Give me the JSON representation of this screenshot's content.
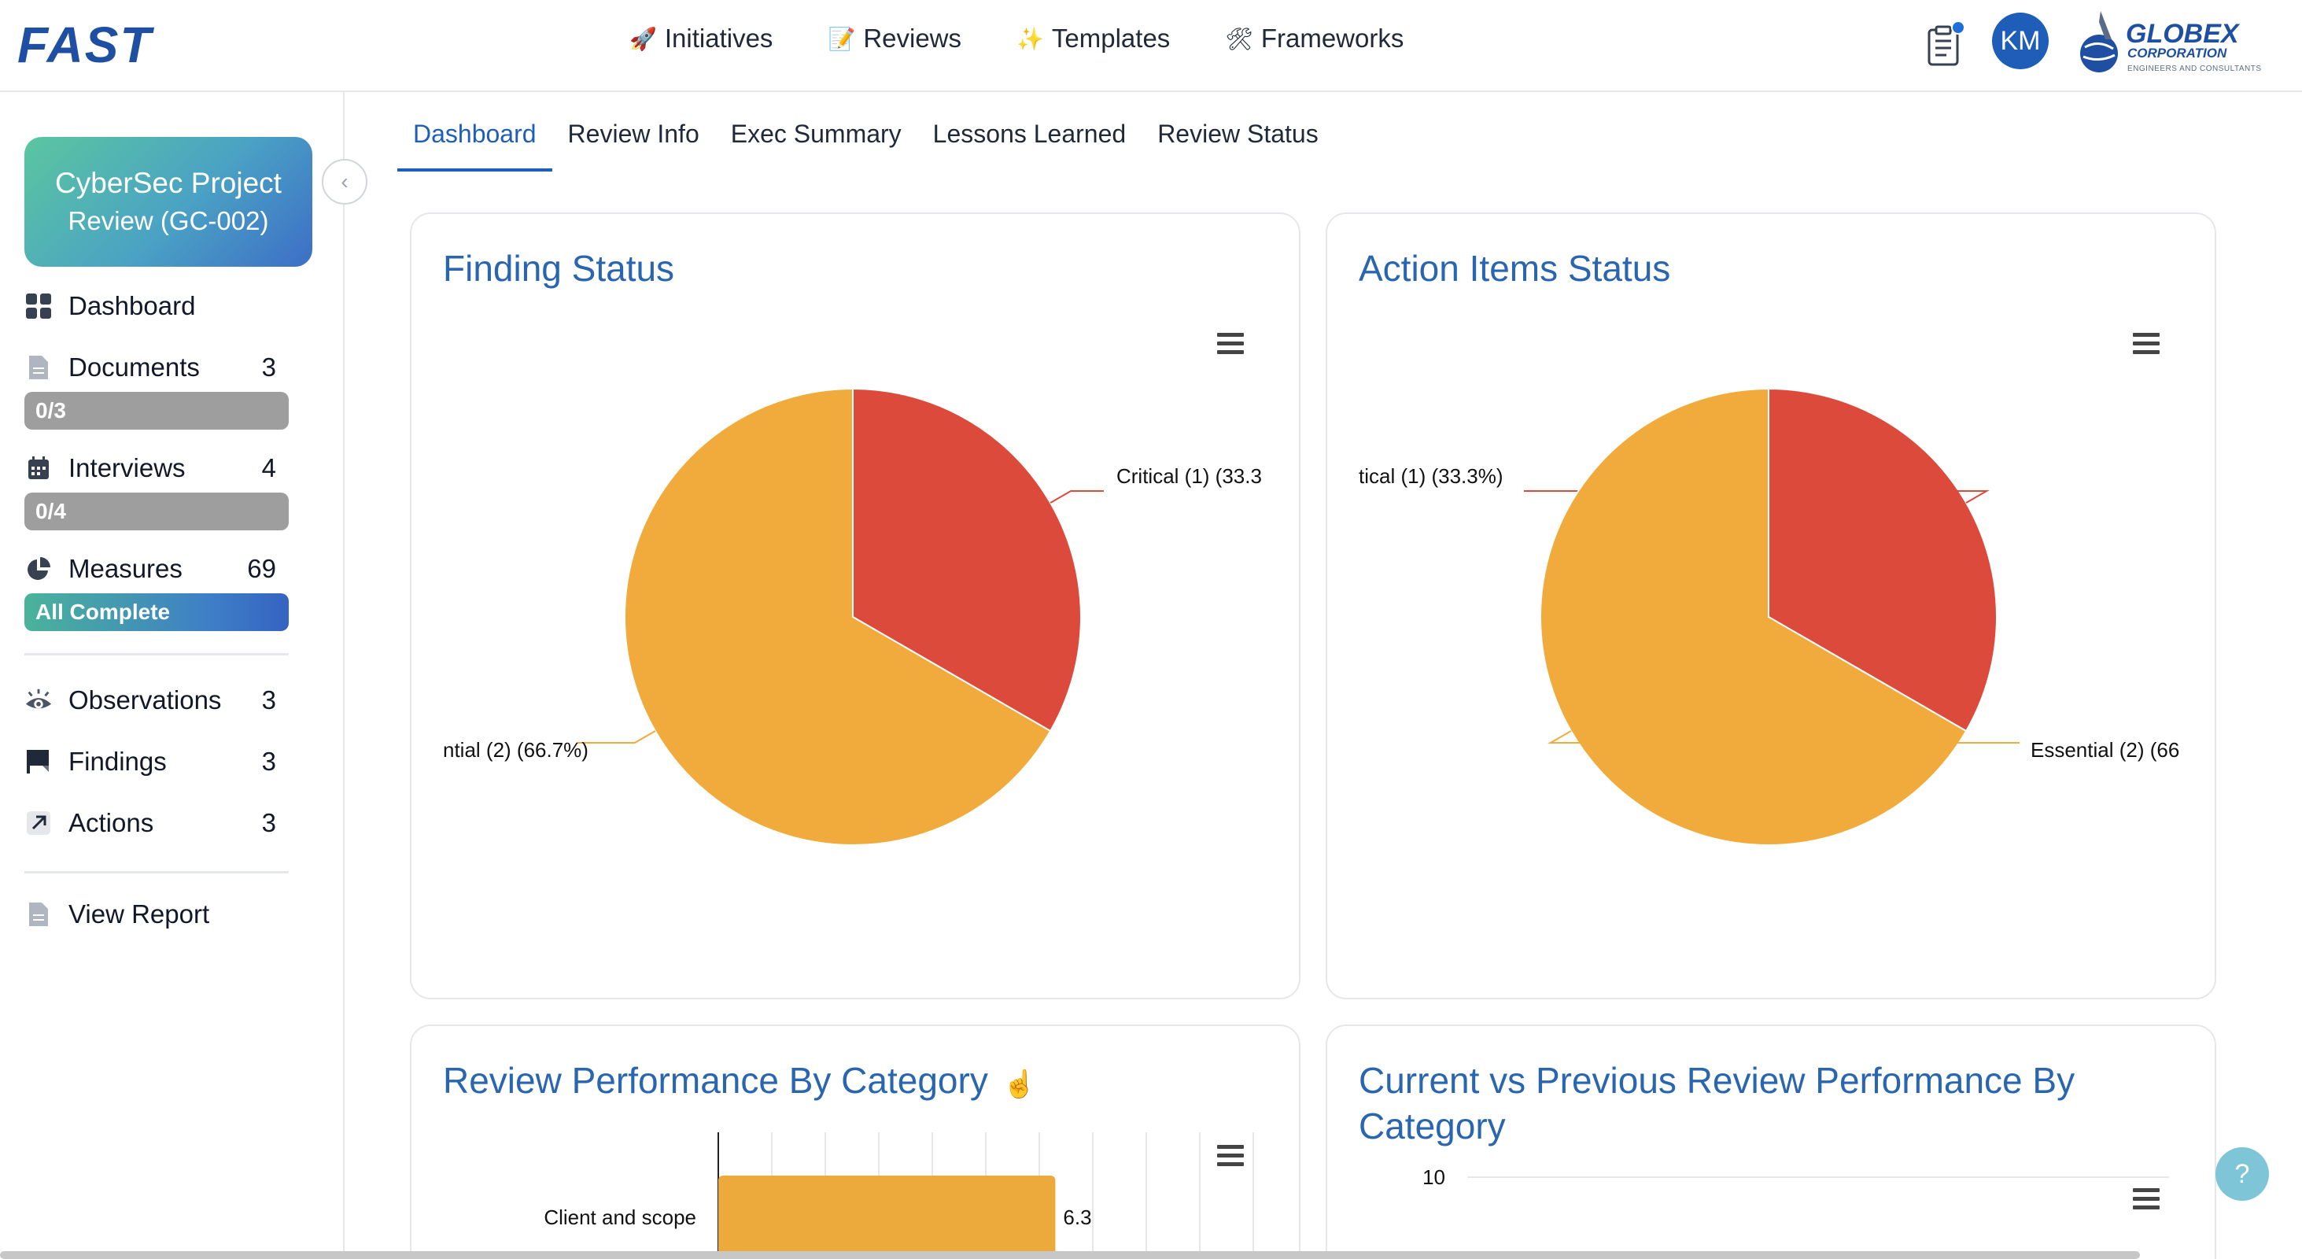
{
  "header": {
    "brand": "FAST",
    "nav": [
      {
        "emoji": "🚀",
        "label": "Initiatives"
      },
      {
        "emoji": "📝",
        "label": "Reviews"
      },
      {
        "emoji": "✨",
        "label": "Templates"
      },
      {
        "emoji": "🛠",
        "label": "Frameworks"
      }
    ],
    "avatar": "KM",
    "corp_name": "GLOBEX",
    "corp_sub": "CORPORATION",
    "corp_tagline": "ENGINEERS AND CONSULTANTS"
  },
  "sidebar": {
    "project_line1": "CyberSec Project",
    "project_line2": "Review (GC-002)",
    "items": [
      {
        "label": "Dashboard",
        "count": "",
        "icon": "grid-icon"
      },
      {
        "label": "Documents",
        "count": "3",
        "icon": "document-icon"
      },
      {
        "label": "Interviews",
        "count": "4",
        "icon": "calendar-icon"
      },
      {
        "label": "Measures",
        "count": "69",
        "icon": "pie-icon"
      },
      {
        "label": "Observations",
        "count": "3",
        "icon": "eye-icon"
      },
      {
        "label": "Findings",
        "count": "3",
        "icon": "flag-icon"
      },
      {
        "label": "Actions",
        "count": "3",
        "icon": "arrow-icon"
      },
      {
        "label": "View Report",
        "count": "",
        "icon": "report-icon"
      }
    ],
    "pills": {
      "documents": "0/3",
      "interviews": "0/4",
      "measures": "All Complete"
    }
  },
  "tabs": [
    "Dashboard",
    "Review Info",
    "Exec Summary",
    "Lessons Learned",
    "Review Status"
  ],
  "cards": {
    "finding_status": "Finding Status",
    "action_items_status": "Action Items Status",
    "review_performance": "Review Performance By Category",
    "current_vs_previous": "Current vs Previous Review Performance By Category"
  },
  "chart_data": [
    {
      "type": "pie",
      "title": "Finding Status",
      "categories": [
        "Critical",
        "Essential"
      ],
      "values": [
        1,
        2
      ],
      "labels": [
        "Critical (1) (33.3",
        "ntial (2) (66.7%)"
      ],
      "colors": [
        "#dc4a3c",
        "#f0ab3c"
      ]
    },
    {
      "type": "pie",
      "title": "Action Items Status",
      "categories": [
        "Critical",
        "Essential"
      ],
      "values": [
        1,
        2
      ],
      "labels": [
        "tical (1) (33.3%)",
        "Essential (2) (66"
      ],
      "colors": [
        "#dc4a3c",
        "#f0ab3c"
      ]
    },
    {
      "type": "bar",
      "title": "Review Performance By Category",
      "categories": [
        "Client and scope"
      ],
      "values": [
        6.3
      ],
      "value_labels": [
        "6.3"
      ],
      "color": "#ecaa3c",
      "xlim": [
        0,
        10
      ]
    },
    {
      "type": "line",
      "title": "Current vs Previous Review Performance By Category",
      "y_ticks": [
        "10"
      ],
      "ylim": [
        0,
        10
      ]
    }
  ],
  "colors": {
    "accent": "#1e5eb8",
    "title": "#2a66b0",
    "critical": "#dc4a3c",
    "essential": "#f0ab3c"
  }
}
